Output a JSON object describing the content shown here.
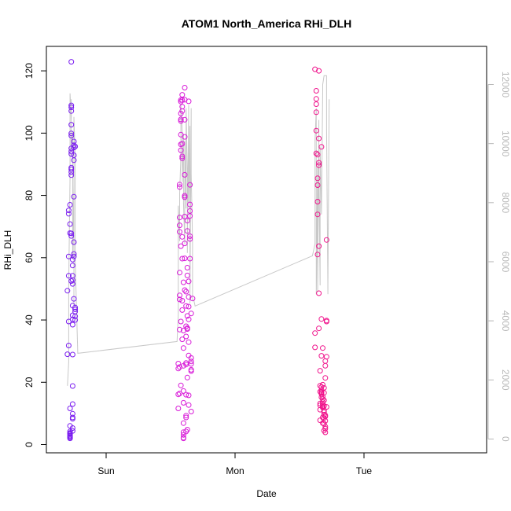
{
  "chart_data": {
    "type": "scatter",
    "title": "ATOM1 North_America RHi_DLH",
    "xlabel": "Date",
    "ylabel": "RHi_DLH",
    "x_axis": {
      "type": "time",
      "ticks": [
        "Sun",
        "Mon",
        "Tue"
      ]
    },
    "y_left": {
      "range": [
        0,
        125
      ],
      "ticks": [
        0,
        20,
        40,
        60,
        80,
        100,
        120
      ]
    },
    "y_right": {
      "range": [
        0,
        12500
      ],
      "ticks": [
        0,
        2000,
        4000,
        6000,
        8000,
        10000,
        12000
      ],
      "color": "#b8b8b8"
    },
    "grid": false,
    "legend": "none",
    "colors": {
      "flight1_points": "#7a1cf0",
      "flight2_points": "#d81bd8",
      "flight3_points": "#f0148c",
      "altitude_line": "#c8c8c8"
    },
    "series": [
      {
        "kind": "points",
        "axis": "left",
        "color_key": "flight1_points",
        "x": [
          -0.3,
          -0.3,
          -0.29,
          -0.29,
          -0.29,
          -0.29,
          -0.29,
          -0.29,
          -0.28,
          -0.28,
          -0.28,
          -0.28,
          -0.28,
          -0.28,
          -0.28,
          -0.28,
          -0.28,
          -0.28,
          -0.28,
          -0.28,
          -0.28,
          -0.27,
          -0.27,
          -0.27,
          -0.27,
          -0.27,
          -0.27,
          -0.27,
          -0.27,
          -0.27,
          -0.27,
          -0.27,
          -0.27,
          -0.27,
          -0.27,
          -0.27,
          -0.27,
          -0.27,
          -0.26,
          -0.26,
          -0.26,
          -0.26,
          -0.26,
          -0.26,
          -0.26,
          -0.26,
          -0.26,
          -0.26,
          -0.26,
          -0.26,
          -0.26,
          -0.26,
          -0.26,
          -0.26,
          -0.26,
          -0.25,
          -0.25,
          -0.25,
          -0.25,
          -0.25,
          -0.25,
          -0.25,
          -0.25,
          -0.25,
          -0.25,
          -0.24,
          -0.24,
          -0.24,
          -0.24,
          -0.24,
          -0.24
        ],
        "y": [
          49.4,
          29.0,
          31.8,
          39.5,
          54.2,
          60.4,
          74.1,
          75.2,
          77.0,
          67.9,
          70.8,
          11.6,
          3.6,
          2.6,
          2.0,
          3.3,
          4.2,
          6.0,
          2.3,
          2.9,
          3.7,
          122.9,
          108.3,
          108.9,
          107.1,
          102.7,
          99.2,
          99.9,
          95.1,
          94.1,
          93.3,
          88.4,
          87.5,
          86.5,
          88.9,
          67.8,
          67.0,
          52.5,
          52.8,
          59.4,
          57.5,
          54.2,
          51.6,
          44.6,
          13.0,
          8.3,
          9.9,
          8.7,
          5.3,
          4.4,
          18.8,
          28.9,
          41.5,
          40.2,
          38.5,
          96.1,
          95.4,
          92.9,
          97.3,
          91.3,
          79.6,
          65.0,
          61.2,
          60.4,
          46.8,
          44.0,
          43.4,
          42.7,
          41.2,
          40.0,
          95.7
        ]
      },
      {
        "kind": "points",
        "axis": "left",
        "color_key": "flight2_points",
        "x": [
          0.56,
          0.56,
          0.56,
          0.56,
          0.57,
          0.57,
          0.57,
          0.57,
          0.57,
          0.57,
          0.57,
          0.57,
          0.57,
          0.57,
          0.57,
          0.58,
          0.58,
          0.58,
          0.58,
          0.58,
          0.58,
          0.58,
          0.58,
          0.58,
          0.58,
          0.58,
          0.59,
          0.59,
          0.59,
          0.59,
          0.59,
          0.59,
          0.59,
          0.59,
          0.59,
          0.59,
          0.59,
          0.59,
          0.6,
          0.6,
          0.6,
          0.6,
          0.6,
          0.6,
          0.6,
          0.6,
          0.6,
          0.6,
          0.6,
          0.61,
          0.61,
          0.61,
          0.61,
          0.61,
          0.61,
          0.61,
          0.61,
          0.61,
          0.61,
          0.61,
          0.62,
          0.62,
          0.62,
          0.62,
          0.62,
          0.62,
          0.62,
          0.62,
          0.62,
          0.62,
          0.63,
          0.63,
          0.63,
          0.63,
          0.63,
          0.63,
          0.63,
          0.63,
          0.63,
          0.64,
          0.64,
          0.64,
          0.64,
          0.64,
          0.64,
          0.64,
          0.64,
          0.64,
          0.65,
          0.65,
          0.65,
          0.65,
          0.65,
          0.65,
          0.65,
          0.66,
          0.66,
          0.66,
          0.66,
          0.66,
          0.66,
          0.66,
          0.67
        ],
        "y": [
          11.6,
          24.4,
          16.1,
          26.0,
          24.9,
          83.5,
          82.7,
          72.9,
          70.4,
          68.3,
          55.2,
          47.9,
          46.6,
          16.4,
          36.9,
          110.6,
          110.1,
          106.3,
          104.4,
          103.9,
          99.5,
          96.4,
          94.5,
          63.7,
          39.5,
          19.0,
          112.3,
          110.6,
          108.5,
          107.1,
          96.6,
          92.5,
          91.9,
          66.7,
          59.7,
          46.2,
          43.2,
          33.8,
          17.2,
          13.4,
          6.9,
          4.0,
          2.0,
          3.1,
          2.2,
          25.3,
          31.0,
          36.6,
          52.1,
          114.6,
          110.7,
          104.3,
          98.8,
          86.6,
          79.9,
          79.4,
          73.2,
          64.6,
          59.8,
          49.6,
          49.1,
          44.5,
          38.0,
          34.7,
          26.2,
          25.7,
          16.0,
          9.3,
          8.7,
          4.2,
          4.8,
          41.3,
          37.4,
          37.1,
          21.5,
          71.9,
          68.6,
          56.8,
          54.3,
          52.4,
          47.4,
          44.3,
          40.2,
          32.9,
          28.6,
          15.8,
          12.7,
          110.2,
          83.4,
          77.1,
          73.4,
          75.0,
          66.0,
          66.9,
          59.7,
          24.0,
          25.9,
          23.6,
          26.7,
          27.8,
          10.6,
          42.1,
          46.9
        ]
      },
      {
        "kind": "points",
        "axis": "left",
        "color_key": "flight3_points",
        "x": [
          1.62,
          1.62,
          1.62,
          1.63,
          1.63,
          1.63,
          1.63,
          1.63,
          1.63,
          1.64,
          1.64,
          1.64,
          1.64,
          1.64,
          1.64,
          1.65,
          1.65,
          1.65,
          1.65,
          1.65,
          1.65,
          1.65,
          1.66,
          1.66,
          1.66,
          1.66,
          1.66,
          1.66,
          1.66,
          1.67,
          1.67,
          1.67,
          1.67,
          1.67,
          1.67,
          1.67,
          1.67,
          1.67,
          1.68,
          1.68,
          1.68,
          1.68,
          1.68,
          1.68,
          1.68,
          1.68,
          1.68,
          1.68,
          1.69,
          1.69,
          1.69,
          1.69,
          1.69,
          1.69,
          1.69,
          1.69,
          1.69,
          1.69,
          1.7,
          1.7,
          1.7,
          1.7,
          1.7,
          1.7,
          1.7,
          1.7,
          1.7,
          1.71,
          1.71,
          1.71,
          1.71,
          1.71
        ],
        "y": [
          35.8,
          31.2,
          120.5,
          113.6,
          111.0,
          109.3,
          106.7,
          100.8,
          93.5,
          93.1,
          85.5,
          83.3,
          78.0,
          73.9,
          61.0,
          48.6,
          63.7,
          89.7,
          90.5,
          98.3,
          120.0,
          37.3,
          18.9,
          13.2,
          11.2,
          12.6,
          7.8,
          17.0,
          23.7,
          95.6,
          40.3,
          28.5,
          18.5,
          17.5,
          16.6,
          16.2,
          16.9,
          15.2,
          6.9,
          31.0,
          19.2,
          14.6,
          12.2,
          13.6,
          11.9,
          12.9,
          15.4,
          8.7,
          18.2,
          16.6,
          14.2,
          12.4,
          11.0,
          10.4,
          9.6,
          8.5,
          6.7,
          4.5,
          3.9,
          5.1,
          5.7,
          7.6,
          9.0,
          9.4,
          21.4,
          25.3,
          26.8,
          28.2,
          39.8,
          39.5,
          65.7,
          12.1
        ]
      },
      {
        "kind": "line",
        "axis": "right",
        "color_key": "altitude_line",
        "x": [
          -0.3,
          -0.29,
          -0.29,
          -0.28,
          -0.28,
          -0.27,
          -0.27,
          -0.27,
          -0.26,
          -0.26,
          -0.26,
          -0.25,
          -0.25,
          -0.25,
          -0.24,
          -0.24,
          -0.24,
          -0.22,
          0.55,
          0.56,
          0.56,
          0.57,
          0.57,
          0.58,
          0.58,
          0.59,
          0.59,
          0.6,
          0.6,
          0.61,
          0.61,
          0.62,
          0.62,
          0.63,
          0.63,
          0.64,
          0.64,
          0.65,
          0.65,
          0.66,
          0.66,
          0.67,
          0.67,
          0.68,
          0.69,
          1.6,
          1.62,
          1.62,
          1.63,
          1.63,
          1.64,
          1.64,
          1.65,
          1.65,
          1.66,
          1.66,
          1.67,
          1.68,
          1.68,
          1.69,
          1.7,
          1.7,
          1.71,
          1.71,
          1.72,
          1.72,
          1.73
        ],
        "y": [
          1800,
          2600,
          5200,
          8900,
          11700,
          10800,
          11500,
          9800,
          10400,
          8200,
          6100,
          8600,
          4500,
          10900,
          9600,
          7600,
          6100,
          2900,
          3300,
          4200,
          7900,
          6700,
          8300,
          9600,
          11300,
          10400,
          8700,
          10300,
          8000,
          6600,
          10100,
          7800,
          11200,
          9100,
          6300,
          11300,
          8000,
          10600,
          4600,
          11200,
          9000,
          6700,
          4700,
          4700,
          4500,
          6200,
          6600,
          10100,
          11200,
          4900,
          9200,
          5000,
          10800,
          8700,
          5200,
          9900,
          7600,
          11800,
          12000,
          12300,
          12300,
          12300,
          12300,
          10500,
          4900,
          5200,
          11500
        ]
      }
    ]
  }
}
